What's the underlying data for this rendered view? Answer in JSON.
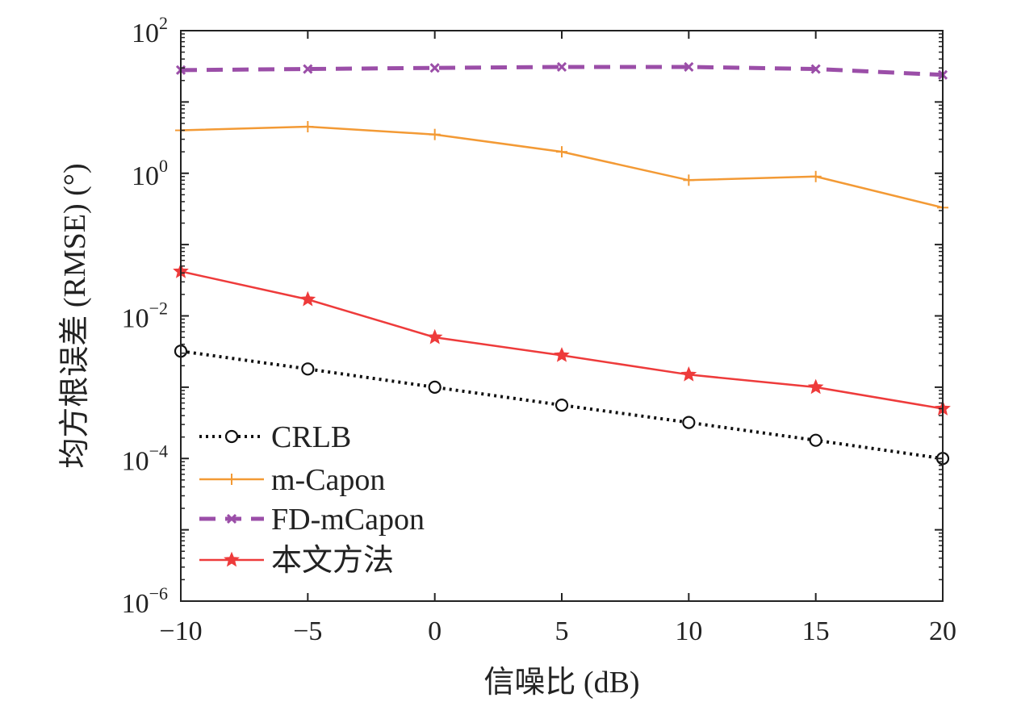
{
  "chart_data": {
    "type": "line",
    "xlabel": "信噪比 (dB)",
    "ylabel": "均方根误差 (RMSE) (°)",
    "x": [
      -10,
      -5,
      0,
      5,
      10,
      15,
      20
    ],
    "xlim": [
      -10,
      20
    ],
    "xticks": [
      {
        "value": -10,
        "label": "−10"
      },
      {
        "value": -5,
        "label": "−5"
      },
      {
        "value": 0,
        "label": "0"
      },
      {
        "value": 5,
        "label": "5"
      },
      {
        "value": 10,
        "label": "10"
      },
      {
        "value": 15,
        "label": "15"
      },
      {
        "value": 20,
        "label": "20"
      }
    ],
    "yscale": "log",
    "ylim": [
      1e-06,
      100
    ],
    "yticks": [
      {
        "value": 100,
        "base": "10",
        "exp": "2"
      },
      {
        "value": 1,
        "base": "10",
        "exp": "0"
      },
      {
        "value": 0.01,
        "base": "10",
        "exp": "−2"
      },
      {
        "value": 0.0001,
        "base": "10",
        "exp": "−4"
      },
      {
        "value": 1e-06,
        "base": "10",
        "exp": "−6"
      }
    ],
    "grid": false,
    "legend_position": "lower-left",
    "series": [
      {
        "name": "CRLB",
        "color": "#111111",
        "line": "dotted",
        "marker": "circle",
        "values": [
          0.0032,
          0.0018,
          0.001,
          0.00056,
          0.00032,
          0.00018,
          0.0001
        ]
      },
      {
        "name": "m-Capon",
        "color": "#f39a35",
        "line": "solid",
        "marker": "plus",
        "values": [
          4.0,
          4.5,
          3.5,
          2.0,
          0.8,
          0.9,
          0.33
        ]
      },
      {
        "name": "FD-mCapon",
        "color": "#9b4ea8",
        "line": "dashed",
        "marker": "x",
        "values": [
          28,
          29,
          30,
          31,
          31,
          29,
          24
        ]
      },
      {
        "name": "本文方法",
        "color": "#ee3b3b",
        "line": "solid",
        "marker": "star",
        "values": [
          0.042,
          0.017,
          0.005,
          0.0028,
          0.0015,
          0.001,
          0.0005
        ]
      }
    ]
  }
}
